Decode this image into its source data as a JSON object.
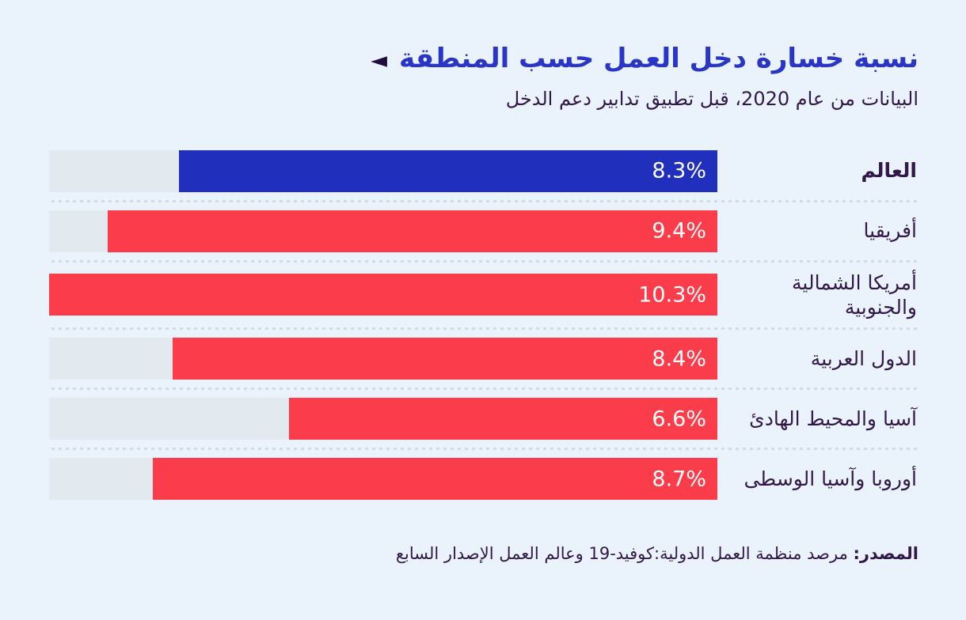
{
  "header": {
    "title": "نسبة خسارة دخل العمل حسب المنطقة",
    "arrow_glyph": "◄",
    "subtitle": "البيانات من عام 2020، قبل تطبيق تدابير دعم الدخل"
  },
  "source": {
    "label": "المصدر:",
    "text": "مرصد منظمة العمل الدولية:كوفيد-19 وعالم العمل الإصدار السابع"
  },
  "colors": {
    "background": "#eaf3fc",
    "track": "#e2eaf0",
    "bar_default": "#fa3c4b",
    "bar_highlight": "#2130bc",
    "title_text": "#2935c7",
    "dark_text": "#311849",
    "value_text": "#ffffff",
    "separator_dots": "#d3dbe2",
    "arrow": "#1f0d42"
  },
  "chart_data": {
    "type": "bar",
    "orientation": "horizontal_rtl",
    "title": "نسبة خسارة دخل العمل حسب المنطقة",
    "subtitle": "البيانات من عام 2020، قبل تطبيق تدابير دعم الدخل",
    "categories": [
      "العالم",
      "أفريقيا",
      "أمريكا الشمالية والجنوبية",
      "الدول العربية",
      "آسيا والمحيط الهادئ",
      "أوروبا وآسيا الوسطى"
    ],
    "values": [
      8.3,
      9.4,
      10.3,
      8.4,
      6.6,
      8.7
    ],
    "value_labels": [
      "8.3%",
      "9.4%",
      "10.3%",
      "8.4%",
      "6.6%",
      "8.7%"
    ],
    "unit": "%",
    "xlim": [
      0,
      10.3
    ],
    "highlight_index": 0,
    "grid": false,
    "legend": false,
    "bar_anchor": "right"
  }
}
